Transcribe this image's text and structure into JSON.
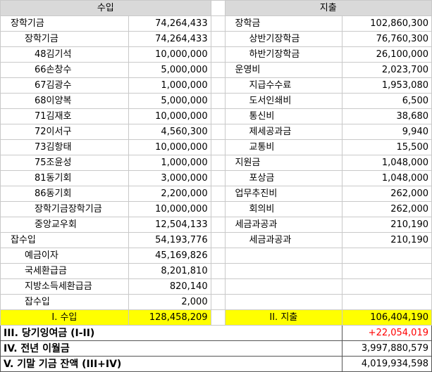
{
  "headers": {
    "income": "수입",
    "expense": "지출"
  },
  "income_rows": [
    {
      "label": "장학기금",
      "value": "74,264,433",
      "level": 1
    },
    {
      "label": "장학기금",
      "value": "74,264,433",
      "level": 2
    },
    {
      "label": "48김기석",
      "value": "10,000,000",
      "level": 3
    },
    {
      "label": "66손창수",
      "value": "5,000,000",
      "level": 3
    },
    {
      "label": "67김광수",
      "value": "1,000,000",
      "level": 3
    },
    {
      "label": "68이양복",
      "value": "5,000,000",
      "level": 3
    },
    {
      "label": "71김재호",
      "value": "10,000,000",
      "level": 3
    },
    {
      "label": "72이서구",
      "value": "4,560,300",
      "level": 3
    },
    {
      "label": "73김항태",
      "value": "10,000,000",
      "level": 3
    },
    {
      "label": "75조윤성",
      "value": "1,000,000",
      "level": 3
    },
    {
      "label": "81동기회",
      "value": "3,000,000",
      "level": 3
    },
    {
      "label": "86동기회",
      "value": "2,200,000",
      "level": 3
    },
    {
      "label": "장학기금장학기금",
      "value": "10,000,000",
      "level": 3
    },
    {
      "label": "중앙교우회",
      "value": "12,504,133",
      "level": 3
    },
    {
      "label": "잡수입",
      "value": "54,193,776",
      "level": 1
    },
    {
      "label": "예금이자",
      "value": "45,169,826",
      "level": 2
    },
    {
      "label": "국세환급금",
      "value": "8,201,810",
      "level": 2
    },
    {
      "label": "지방소득세환급금",
      "value": "820,140",
      "level": 2
    },
    {
      "label": "잡수입",
      "value": "2,000",
      "level": 2
    }
  ],
  "expense_rows": [
    {
      "label": "장학금",
      "value": "102,860,300",
      "level": 1
    },
    {
      "label": "상반기장학금",
      "value": "76,760,300",
      "level": 2
    },
    {
      "label": "하반기장학금",
      "value": "26,100,000",
      "level": 2
    },
    {
      "label": "운영비",
      "value": "2,023,700",
      "level": 1
    },
    {
      "label": "지급수수료",
      "value": "1,953,080",
      "level": 2
    },
    {
      "label": "도서인쇄비",
      "value": "6,500",
      "level": 2
    },
    {
      "label": "통신비",
      "value": "38,680",
      "level": 2
    },
    {
      "label": "제세공과금",
      "value": "9,940",
      "level": 2
    },
    {
      "label": "교통비",
      "value": "15,500",
      "level": 2
    },
    {
      "label": "지원금",
      "value": "1,048,000",
      "level": 1
    },
    {
      "label": "포상금",
      "value": "1,048,000",
      "level": 2
    },
    {
      "label": "업무추진비",
      "value": "262,000",
      "level": 1
    },
    {
      "label": "회의비",
      "value": "262,000",
      "level": 2
    },
    {
      "label": "세금과공과",
      "value": "210,190",
      "level": 1
    },
    {
      "label": "세금과공과",
      "value": "210,190",
      "level": 2
    }
  ],
  "totals": {
    "income_label": "I. 수입",
    "income_value": "128,458,209",
    "expense_label": "II. 지출",
    "expense_value": "106,404,190"
  },
  "summary": [
    {
      "label": "III. 당기잉여금 (I-II)",
      "value": "+22,054,019",
      "color": "#ff0000"
    },
    {
      "label": "IV. 전년 이월금",
      "value": "3,997,880,579",
      "color": "#000000"
    },
    {
      "label": "V. 기말 기금 잔액 (III+IV)",
      "value": "4,019,934,598",
      "color": "#000000"
    }
  ]
}
